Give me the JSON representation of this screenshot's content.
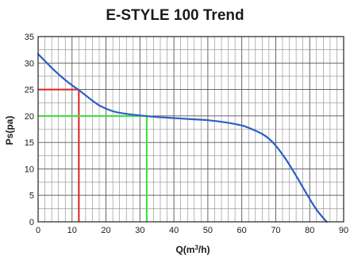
{
  "chart_data": {
    "type": "line",
    "title": "E-STYLE 100 Trend",
    "xlabel_main": "Q(m",
    "xlabel_sup": "3",
    "xlabel_tail": "/h)",
    "ylabel": "Ps(pa)",
    "xlim": [
      0,
      90
    ],
    "ylim": [
      0,
      35
    ],
    "x_ticks": [
      0,
      10,
      20,
      30,
      40,
      50,
      60,
      70,
      80,
      90
    ],
    "y_ticks": [
      0,
      5,
      10,
      15,
      20,
      25,
      30,
      35
    ],
    "x_grid_step": 2,
    "y_grid_step": 2.5,
    "grid": true,
    "series": [
      {
        "color": "#2a5fc8",
        "x": [
          0,
          2,
          4,
          6,
          8,
          10,
          12,
          15,
          18,
          22,
          26,
          30,
          35,
          40,
          45,
          50,
          55,
          60,
          63,
          66,
          68,
          70,
          73,
          76,
          79,
          82,
          85
        ],
        "y": [
          31.7,
          30.4,
          29.1,
          27.9,
          26.8,
          25.8,
          24.9,
          23.4,
          22.0,
          20.9,
          20.4,
          20.1,
          19.8,
          19.6,
          19.4,
          19.2,
          18.8,
          18.2,
          17.5,
          16.6,
          15.7,
          14.4,
          11.8,
          8.7,
          5.4,
          2.3,
          0
        ]
      }
    ],
    "markers": [
      {
        "color": "#e02020",
        "x": 12,
        "y": 25
      },
      {
        "color": "#33e033",
        "x": 32,
        "y": 20
      }
    ]
  }
}
